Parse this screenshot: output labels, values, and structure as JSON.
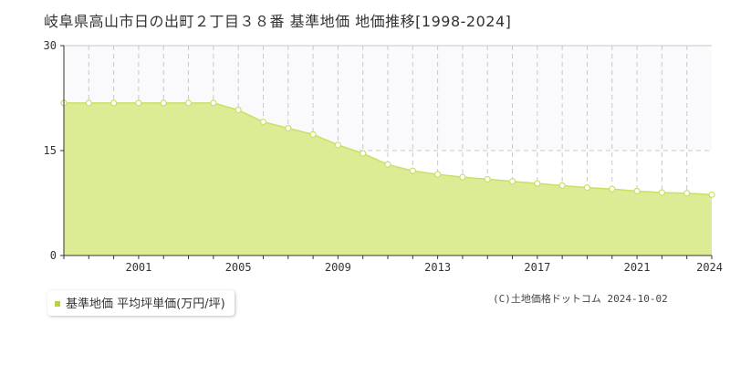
{
  "page": {
    "title": "岐阜県高山市日の出町２丁目３８番 基準地価 地価推移[1998-2024]",
    "legend_label": "基準地価 平均坪単価(万円/坪)",
    "copyright": "(C)土地価格ドットコム 2024-10-02"
  },
  "colors": {
    "area_fill": "#dcec94",
    "line": "#c8df68",
    "marker_fill": "#ffffff",
    "marker_stroke": "#c8df68",
    "grid": "#c8c8c8",
    "axis": "#333333",
    "upper_band": "#fafafc",
    "legend_swatch": "#b8d43a"
  },
  "chart_data": {
    "type": "area",
    "title": "岐阜県高山市日の出町２丁目３８番 基準地価 地価推移[1998-2024]",
    "xlabel": "",
    "ylabel": "",
    "ylim": [
      0,
      30
    ],
    "xlim": [
      1998,
      2024
    ],
    "yticks": [
      0,
      15,
      30
    ],
    "xticks": [
      2001,
      2005,
      2009,
      2013,
      2017,
      2021,
      2024
    ],
    "grid": true,
    "legend": "bottom-left",
    "series": [
      {
        "name": "基準地価 平均坪単価(万円/坪)",
        "x": [
          1998,
          1999,
          2000,
          2001,
          2002,
          2003,
          2004,
          2005,
          2006,
          2007,
          2008,
          2009,
          2010,
          2011,
          2012,
          2013,
          2014,
          2015,
          2016,
          2017,
          2018,
          2019,
          2020,
          2021,
          2022,
          2023,
          2024
        ],
        "values": [
          21.8,
          21.8,
          21.8,
          21.8,
          21.8,
          21.8,
          21.8,
          20.8,
          19.1,
          18.2,
          17.3,
          15.8,
          14.6,
          13.0,
          12.1,
          11.6,
          11.2,
          10.9,
          10.6,
          10.3,
          10.0,
          9.7,
          9.5,
          9.2,
          9.0,
          8.9,
          8.7
        ]
      }
    ]
  }
}
